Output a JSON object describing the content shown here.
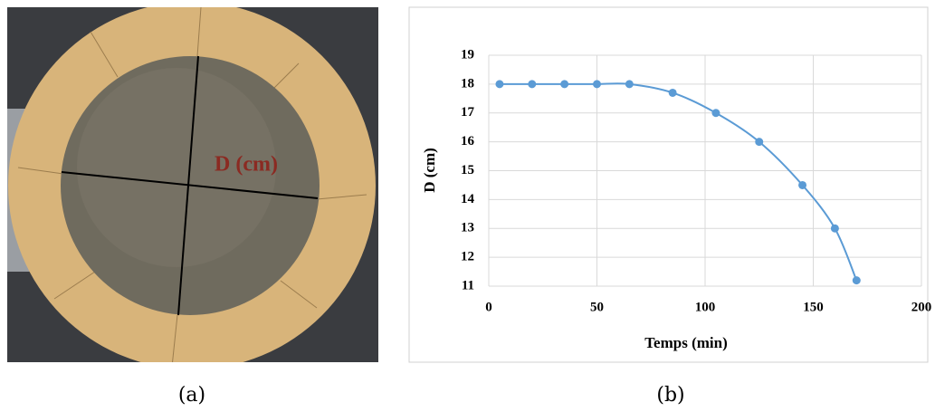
{
  "photo_label": "D (cm)",
  "captions": [
    "(a)",
    "(b)"
  ],
  "chart_data": {
    "type": "line",
    "x_label": "Temps (min)",
    "y_label": "D (cm)",
    "x": [
      5,
      20,
      35,
      50,
      65,
      85,
      105,
      125,
      145,
      160,
      170
    ],
    "values": [
      18,
      18,
      18,
      18,
      18,
      17.7,
      17,
      16,
      14.5,
      13,
      11.2
    ],
    "color": "#5b9bd5",
    "xlim": [
      0,
      200
    ],
    "xticks": [
      0,
      50,
      100,
      150,
      200
    ],
    "ylim": [
      11,
      19
    ],
    "yticks": [
      11,
      12,
      13,
      14,
      15,
      16,
      17,
      18,
      19
    ],
    "grid": true,
    "smooth": true
  }
}
